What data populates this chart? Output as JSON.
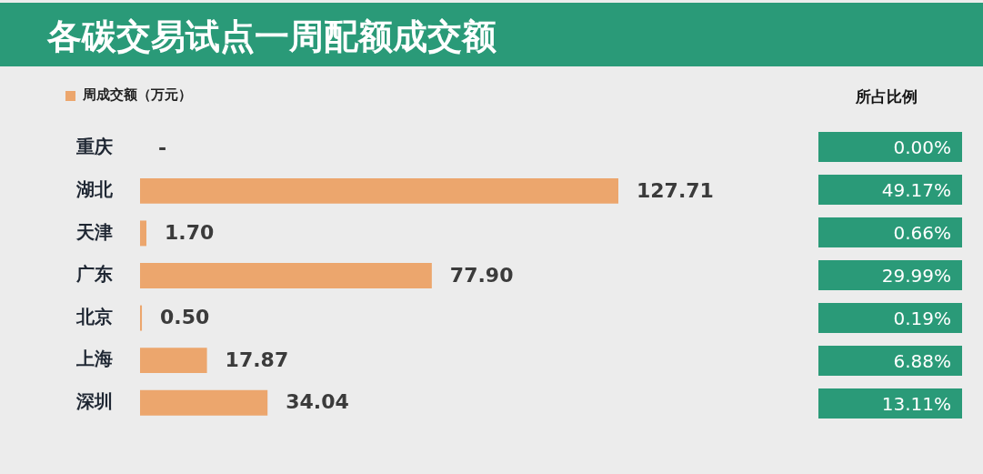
{
  "chart_data": [
    {
      "type": "bar",
      "title": "各碳交易试点一周配额成交额",
      "orientation": "horizontal",
      "legend": "top left",
      "categories": [
        "重庆",
        "湖北",
        "天津",
        "广东",
        "北京",
        "上海",
        "深圳"
      ],
      "series": [
        {
          "name": "周成交额（万元）",
          "color": "#eca66d",
          "values": [
            0,
            127.71,
            1.7,
            77.9,
            0.5,
            17.87,
            34.04
          ],
          "value_labels": [
            "-",
            "127.71",
            "1.70",
            "77.90",
            "0.50",
            "17.87",
            "34.04"
          ]
        }
      ]
    },
    {
      "type": "other",
      "title": "所占比例",
      "annotations": [
        "0.00%",
        "49.17%",
        "0.66%",
        "29.99%",
        "0.19%",
        "6.88%",
        "13.11%"
      ]
    }
  ]
}
